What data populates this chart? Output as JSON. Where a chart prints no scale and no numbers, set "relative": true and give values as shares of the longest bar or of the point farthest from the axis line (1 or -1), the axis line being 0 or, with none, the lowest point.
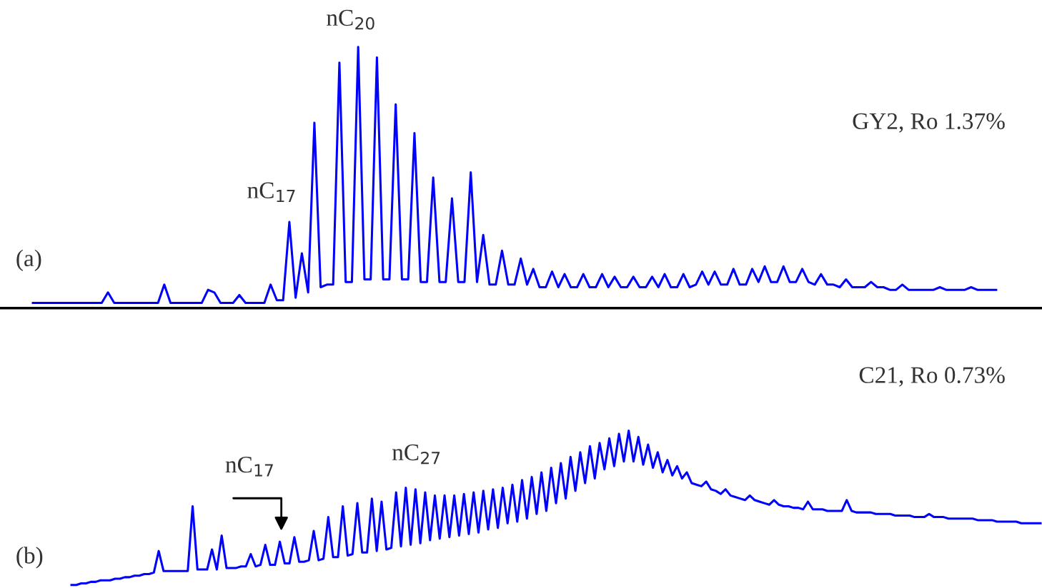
{
  "chart_data": [
    {
      "type": "line",
      "title": "GY2, Ro 1.37%",
      "relative": true,
      "annotations": [
        "(a)",
        "nC$_{17}$",
        "nC$_{20}$"
      ],
      "categories": [
        null,
        null,
        null,
        null,
        null,
        null,
        null,
        null,
        null,
        null,
        null,
        null,
        null,
        null,
        null,
        null,
        null,
        null,
        null,
        null,
        null,
        null,
        null,
        null,
        null,
        null,
        null,
        null,
        null,
        null,
        null,
        null,
        null,
        null,
        null,
        null,
        null,
        null,
        null,
        null,
        null,
        null,
        null,
        null,
        null,
        null,
        null,
        null,
        null,
        null,
        null,
        null,
        null,
        null,
        null,
        null,
        null,
        null,
        null,
        null,
        null,
        null,
        null,
        null,
        null,
        null,
        null,
        null,
        null,
        null,
        null,
        null,
        null,
        null,
        null,
        null,
        null,
        null,
        null,
        null,
        null,
        null,
        null,
        null,
        null,
        null,
        null,
        null,
        null,
        null,
        null,
        null,
        null,
        null,
        null,
        null,
        null,
        null,
        null,
        null,
        null,
        null,
        null,
        null,
        null,
        null,
        null,
        null,
        null,
        null,
        null,
        null,
        null,
        null,
        null,
        null,
        null,
        null,
        null,
        null,
        null,
        null,
        null,
        null,
        null,
        null,
        null,
        null,
        null,
        null,
        null,
        null,
        null,
        null,
        null,
        null,
        null,
        null,
        null,
        null,
        null,
        null,
        null,
        null,
        null,
        null,
        null,
        null,
        null,
        null,
        null,
        null,
        null,
        null,
        null
      ],
      "series": [
        {
          "color": "#0000ff",
          "values": [
            0.02,
            0.02,
            0.02,
            0.02,
            0.02,
            0.02,
            0.02,
            0.02,
            0.02,
            0.02,
            0.02,
            0.02,
            0.06,
            0.02,
            0.02,
            0.02,
            0.02,
            0.02,
            0.02,
            0.02,
            0.02,
            0.09,
            0.02,
            0.02,
            0.02,
            0.02,
            0.02,
            0.02,
            0.07,
            0.06,
            0.02,
            0.02,
            0.02,
            0.05,
            0.02,
            0.02,
            0.02,
            0.02,
            0.09,
            0.03,
            0.03,
            0.33,
            0.04,
            0.21,
            0.06,
            0.71,
            0.08,
            0.09,
            0.09,
            0.94,
            0.1,
            0.1,
            1.0,
            0.11,
            0.11,
            0.96,
            0.11,
            0.11,
            0.78,
            0.11,
            0.11,
            0.67,
            0.1,
            0.1,
            0.5,
            0.1,
            0.1,
            0.42,
            0.1,
            0.1,
            0.52,
            0.1,
            0.28,
            0.09,
            0.09,
            0.22,
            0.09,
            0.09,
            0.19,
            0.09,
            0.15,
            0.08,
            0.08,
            0.14,
            0.08,
            0.13,
            0.08,
            0.08,
            0.13,
            0.08,
            0.08,
            0.13,
            0.08,
            0.12,
            0.08,
            0.08,
            0.12,
            0.08,
            0.08,
            0.12,
            0.08,
            0.13,
            0.08,
            0.08,
            0.13,
            0.08,
            0.09,
            0.14,
            0.09,
            0.14,
            0.09,
            0.09,
            0.15,
            0.09,
            0.09,
            0.15,
            0.1,
            0.16,
            0.1,
            0.1,
            0.16,
            0.1,
            0.1,
            0.15,
            0.1,
            0.09,
            0.13,
            0.09,
            0.09,
            0.08,
            0.11,
            0.08,
            0.08,
            0.08,
            0.1,
            0.08,
            0.08,
            0.07,
            0.07,
            0.09,
            0.07,
            0.07,
            0.07,
            0.07,
            0.07,
            0.08,
            0.07,
            0.07,
            0.07,
            0.07,
            0.08,
            0.07,
            0.07,
            0.07,
            0.07
          ]
        }
      ]
    },
    {
      "type": "line",
      "title": "C21, Ro 0.73%",
      "relative": true,
      "annotations": [
        "(b)",
        "nC$_{17}$",
        "nC$_{27}$"
      ],
      "categories": [
        null,
        null,
        null,
        null,
        null,
        null,
        null,
        null,
        null,
        null,
        null,
        null,
        null,
        null,
        null,
        null,
        null,
        null,
        null,
        null,
        null,
        null,
        null,
        null,
        null,
        null,
        null,
        null,
        null,
        null,
        null,
        null,
        null,
        null,
        null,
        null,
        null,
        null,
        null,
        null,
        null,
        null,
        null,
        null,
        null,
        null,
        null,
        null,
        null,
        null,
        null,
        null,
        null,
        null,
        null,
        null,
        null,
        null,
        null,
        null,
        null,
        null,
        null,
        null,
        null,
        null,
        null,
        null,
        null,
        null,
        null,
        null,
        null,
        null,
        null,
        null,
        null,
        null,
        null,
        null,
        null,
        null,
        null,
        null,
        null,
        null,
        null,
        null,
        null,
        null,
        null,
        null,
        null,
        null,
        null,
        null,
        null,
        null,
        null,
        null,
        null,
        null,
        null,
        null,
        null,
        null,
        null,
        null,
        null,
        null,
        null,
        null,
        null,
        null,
        null,
        null,
        null,
        null,
        null,
        null,
        null,
        null,
        null,
        null,
        null,
        null,
        null,
        null,
        null,
        null,
        null,
        null,
        null,
        null,
        null,
        null,
        null,
        null,
        null,
        null,
        null,
        null,
        null,
        null,
        null,
        null,
        null,
        null,
        null,
        null,
        null,
        null,
        null,
        null,
        null,
        null,
        null,
        null,
        null,
        null,
        null,
        null,
        null,
        null,
        null,
        null,
        null,
        null,
        null,
        null,
        null,
        null,
        null,
        null,
        null,
        null,
        null,
        null,
        null,
        null,
        null,
        null,
        null,
        null,
        null,
        null,
        null,
        null,
        null,
        null,
        null,
        null,
        null,
        null,
        null,
        null,
        null,
        null,
        null,
        null,
        null
      ],
      "series": [
        {
          "color": "#0000ff",
          "values": [
            0.0,
            0.0,
            0.01,
            0.01,
            0.02,
            0.02,
            0.03,
            0.03,
            0.03,
            0.04,
            0.04,
            0.05,
            0.05,
            0.06,
            0.06,
            0.07,
            0.07,
            0.08,
            0.22,
            0.09,
            0.09,
            0.09,
            0.09,
            0.09,
            0.09,
            0.51,
            0.1,
            0.1,
            0.1,
            0.23,
            0.1,
            0.32,
            0.11,
            0.11,
            0.11,
            0.12,
            0.12,
            0.2,
            0.12,
            0.13,
            0.26,
            0.13,
            0.13,
            0.28,
            0.14,
            0.14,
            0.31,
            0.15,
            0.15,
            0.16,
            0.35,
            0.16,
            0.17,
            0.44,
            0.18,
            0.18,
            0.51,
            0.19,
            0.2,
            0.53,
            0.21,
            0.21,
            0.56,
            0.22,
            0.54,
            0.23,
            0.24,
            0.6,
            0.25,
            0.63,
            0.26,
            0.62,
            0.27,
            0.6,
            0.29,
            0.58,
            0.3,
            0.58,
            0.31,
            0.58,
            0.32,
            0.59,
            0.33,
            0.6,
            0.34,
            0.61,
            0.36,
            0.62,
            0.37,
            0.63,
            0.4,
            0.65,
            0.41,
            0.68,
            0.43,
            0.7,
            0.46,
            0.73,
            0.48,
            0.76,
            0.53,
            0.79,
            0.56,
            0.83,
            0.61,
            0.86,
            0.66,
            0.9,
            0.69,
            0.92,
            0.75,
            0.95,
            0.77,
            0.98,
            0.8,
            1.0,
            0.8,
            0.96,
            0.78,
            0.91,
            0.76,
            0.86,
            0.73,
            0.81,
            0.71,
            0.77,
            0.69,
            0.73,
            0.66,
            0.65,
            0.64,
            0.67,
            0.62,
            0.61,
            0.59,
            0.62,
            0.58,
            0.57,
            0.56,
            0.55,
            0.58,
            0.55,
            0.54,
            0.53,
            0.52,
            0.55,
            0.52,
            0.51,
            0.51,
            0.5,
            0.5,
            0.49,
            0.54,
            0.49,
            0.49,
            0.49,
            0.48,
            0.48,
            0.48,
            0.48,
            0.55,
            0.48,
            0.47,
            0.47,
            0.47,
            0.47,
            0.46,
            0.46,
            0.46,
            0.46,
            0.45,
            0.45,
            0.45,
            0.45,
            0.44,
            0.44,
            0.44,
            0.46,
            0.44,
            0.44,
            0.44,
            0.43,
            0.43,
            0.43,
            0.43,
            0.43,
            0.43,
            0.42,
            0.42,
            0.42,
            0.42,
            0.41,
            0.41,
            0.41,
            0.41,
            0.41,
            0.4,
            0.4,
            0.4,
            0.4,
            0.4
          ]
        }
      ]
    }
  ]
}
